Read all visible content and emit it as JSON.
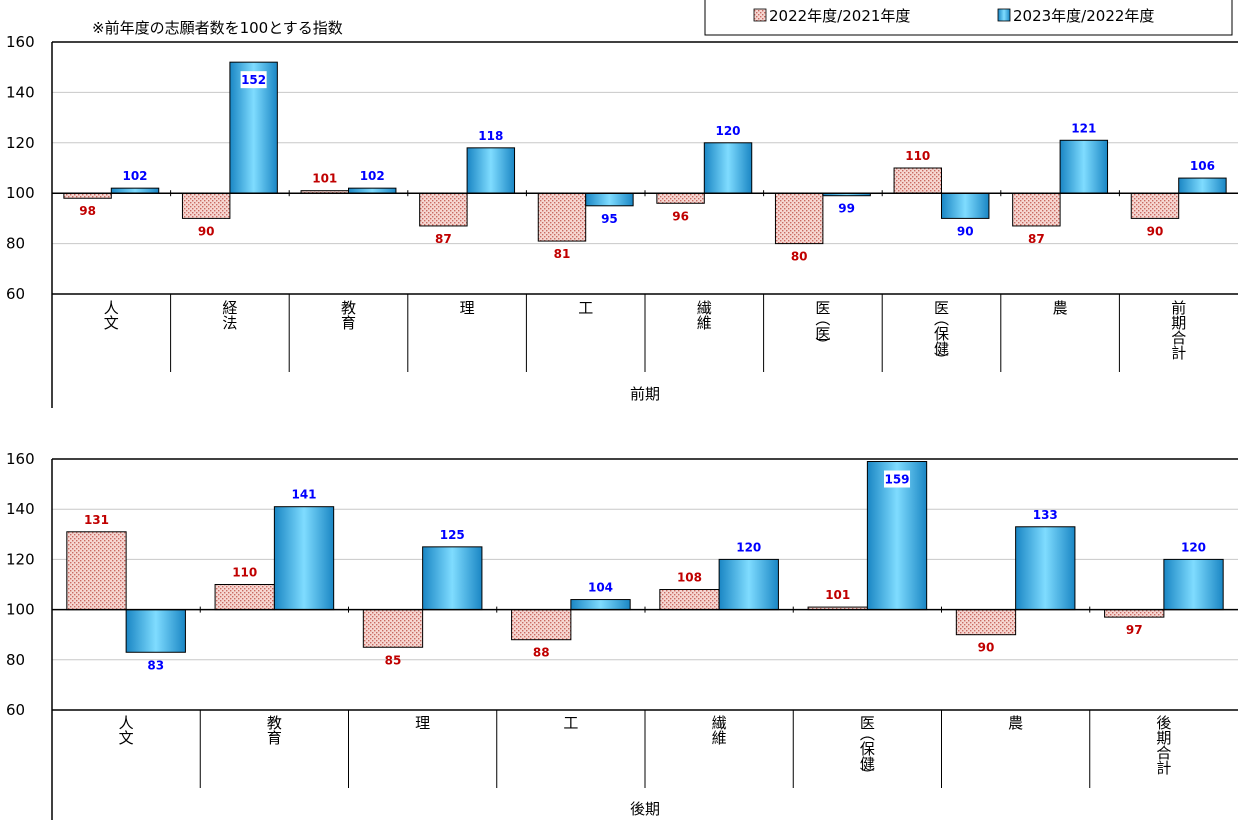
{
  "note": "※前年度の志願者数を100とする指数",
  "legend": [
    {
      "label": "2022年度/2021年度"
    },
    {
      "label": "2023年度/2022年度"
    }
  ],
  "colors": {
    "series1_fill": "#f6d7d2",
    "series1_dot": "#c96a62",
    "series1_label": "#c00000",
    "series2_light": "#7fdcff",
    "series2_dark": "#1a86c4",
    "series2_label": "#0000ff",
    "axis": "#000000",
    "grid": "#c8c8c8"
  },
  "chart_data": [
    {
      "type": "bar",
      "group_label": "前期",
      "baseline": 100,
      "ylim": [
        60,
        160
      ],
      "yticks": [
        60,
        80,
        100,
        120,
        140,
        160
      ],
      "grid": true,
      "legend_position": "top-right",
      "categories": [
        "人文",
        "経法",
        "教育",
        "理",
        "工",
        "繊維",
        "医(医)",
        "医(保健)",
        "農",
        "前期合計"
      ],
      "series": [
        {
          "name": "2022年度/2021年度",
          "values": [
            98,
            90,
            101,
            87,
            81,
            96,
            80,
            110,
            87,
            90
          ]
        },
        {
          "name": "2023年度/2022年度",
          "values": [
            102,
            152,
            102,
            118,
            95,
            120,
            99,
            90,
            121,
            106
          ]
        }
      ]
    },
    {
      "type": "bar",
      "group_label": "後期",
      "baseline": 100,
      "ylim": [
        60,
        160
      ],
      "yticks": [
        60,
        80,
        100,
        120,
        140,
        160
      ],
      "grid": true,
      "categories": [
        "人文",
        "教育",
        "理",
        "工",
        "繊維",
        "医(保健)",
        "農",
        "後期合計"
      ],
      "series": [
        {
          "name": "2022年度/2021年度",
          "values": [
            131,
            110,
            85,
            88,
            108,
            101,
            90,
            97
          ]
        },
        {
          "name": "2023年度/2022年度",
          "values": [
            83,
            141,
            125,
            104,
            120,
            159,
            133,
            120
          ]
        }
      ]
    }
  ]
}
